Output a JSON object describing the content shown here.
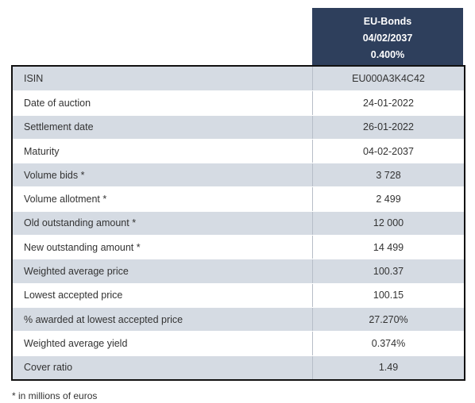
{
  "header": {
    "lines": [
      "EU-Bonds",
      "04/02/2037",
      "0.400%"
    ]
  },
  "table": {
    "rows": [
      [
        "ISIN",
        "EU000A3K4C42"
      ],
      [
        "Date of auction",
        "24-01-2022"
      ],
      [
        "Settlement date",
        "26-01-2022"
      ],
      [
        "Maturity",
        "04-02-2037"
      ],
      [
        "Volume bids *",
        "3 728"
      ],
      [
        "Volume allotment *",
        "2 499"
      ],
      [
        "Old outstanding amount *",
        "12 000"
      ],
      [
        "New outstanding amount *",
        "14 499"
      ],
      [
        "Weighted average price",
        "100.37"
      ],
      [
        "Lowest accepted price",
        "100.15"
      ],
      [
        "% awarded at lowest accepted price",
        "27.270%"
      ],
      [
        "Weighted average yield",
        "0.374%"
      ],
      [
        "Cover ratio",
        "1.49"
      ]
    ]
  },
  "footnote": "* in millions of euros"
}
